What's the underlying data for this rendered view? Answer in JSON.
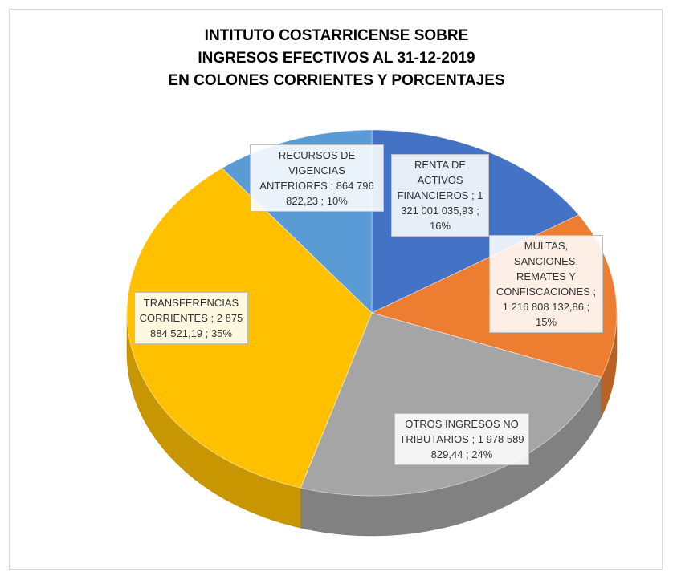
{
  "chart_data": {
    "type": "pie3d",
    "title": [
      "INTITUTO COSTARRICENSE SOBRE",
      "INGRESOS EFECTIVOS AL 31-12-2019",
      "EN COLONES CORRIENTES Y PORCENTAJES"
    ],
    "categories": [
      "RENTA DE ACTIVOS FINANCIEROS",
      "MULTAS, SANCIONES, REMATES Y CONFISCACIONES",
      "OTROS INGRESOS NO TRIBUTARIOS",
      "TRANSFERENCIAS CORRIENTES",
      "RECURSOS DE VIGENCIAS ANTERIORES"
    ],
    "values": [
      1321001035.93,
      1216808132.86,
      1978589829.44,
      2875884521.19,
      864796822.23
    ],
    "value_labels": [
      "1 321 001 035,93",
      "1 216 808 132,86",
      "1 978 589 829,44",
      "2 875 884 521,19",
      "864 796 822,23"
    ],
    "percentages": [
      16,
      15,
      24,
      35,
      10
    ],
    "percentage_labels": [
      "16%",
      "15%",
      "24%",
      "35%",
      "10%"
    ],
    "label_separator": ";",
    "colors": [
      "#4472c4",
      "#ed7d31",
      "#a5a5a5",
      "#ffc000",
      "#5b9bd5"
    ]
  }
}
